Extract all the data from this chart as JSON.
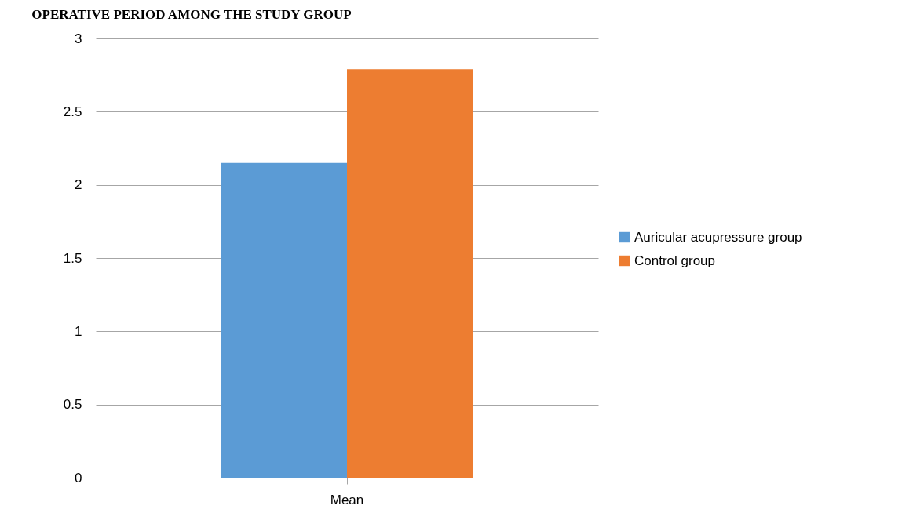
{
  "chart_data": {
    "type": "bar",
    "title": "OPERATIVE PERIOD AMONG THE STUDY GROUP",
    "categories": [
      "Mean"
    ],
    "series": [
      {
        "name": "Auricular acupressure group",
        "color": "#5b9bd5",
        "values": [
          2.15
        ]
      },
      {
        "name": "Control group",
        "color": "#ed7d31",
        "values": [
          2.79
        ]
      }
    ],
    "ylim": [
      0,
      3
    ],
    "yticks": [
      0,
      0.5,
      1,
      1.5,
      2,
      2.5,
      3
    ],
    "grid": "y",
    "legend": "right"
  }
}
